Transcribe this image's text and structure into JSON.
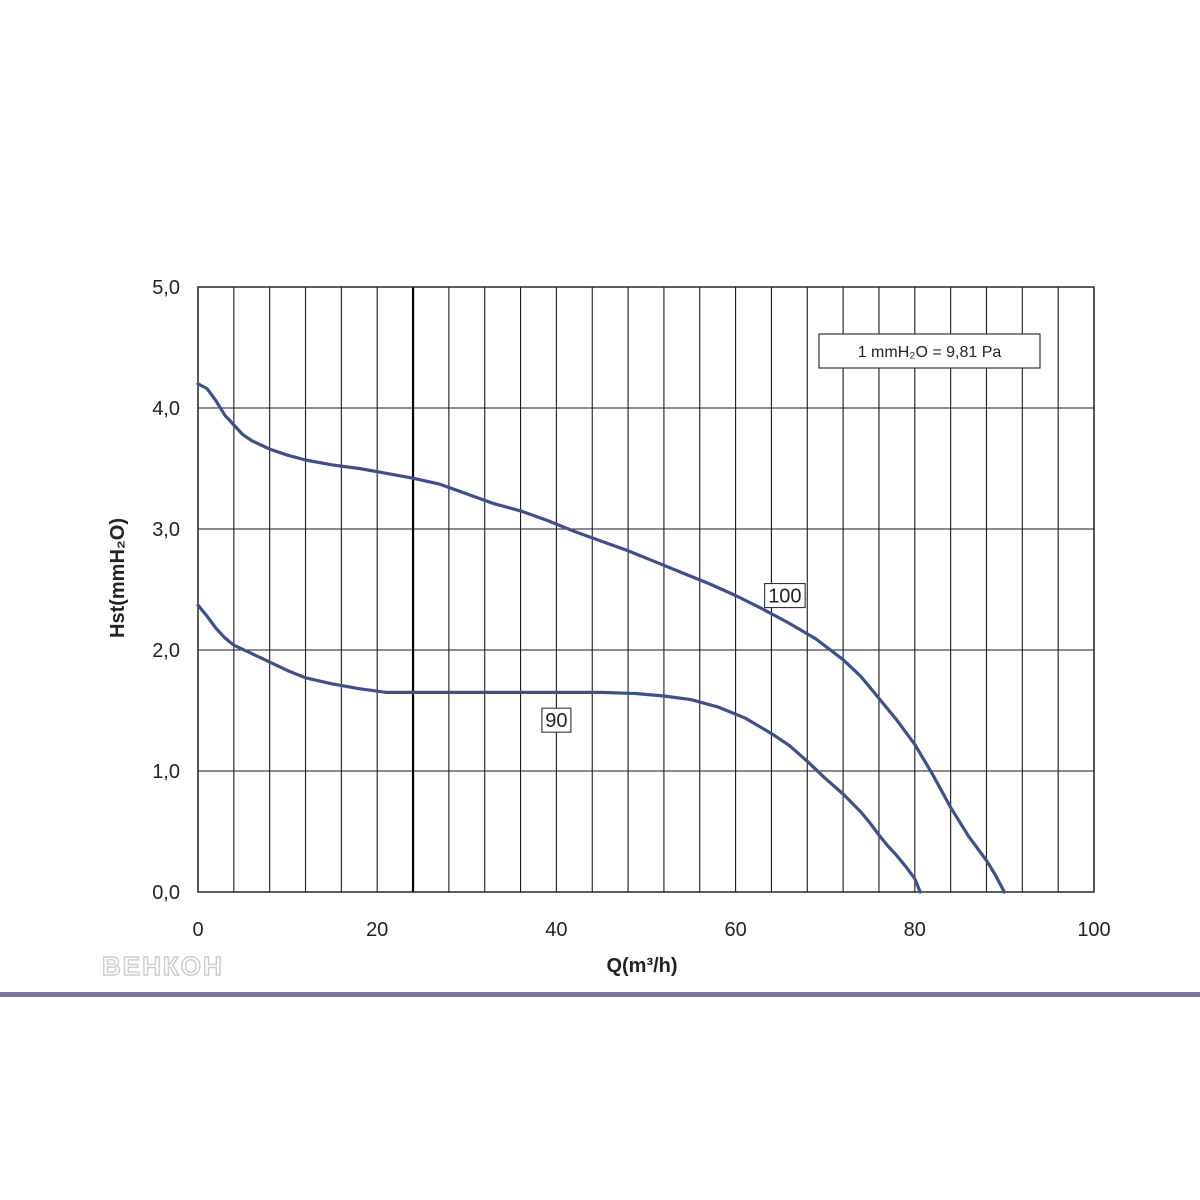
{
  "chart_data": {
    "type": "line",
    "title": "",
    "xlabel": "Q(m³/h)",
    "ylabel": "Hst(mmH₂O)",
    "xlim": [
      0,
      100
    ],
    "ylim": [
      0,
      5
    ],
    "x_ticks": [
      "0",
      "20",
      "40",
      "60",
      "80",
      "100"
    ],
    "y_ticks": [
      "0,0",
      "1,0",
      "2,0",
      "3,0",
      "4,0",
      "5,0"
    ],
    "grid": true,
    "grid_x_step": 4,
    "grid_y_step": 1,
    "emphasized_vertical_line_x": 24,
    "annotation": "1 mmH₂O = 9,81 Pa",
    "series": [
      {
        "name": "100",
        "label_at": [
          65.5,
          2.45
        ],
        "points": [
          [
            0,
            4.2
          ],
          [
            1,
            4.16
          ],
          [
            2,
            4.06
          ],
          [
            3,
            3.94
          ],
          [
            4,
            3.86
          ],
          [
            5,
            3.78
          ],
          [
            6,
            3.73
          ],
          [
            8,
            3.66
          ],
          [
            10,
            3.61
          ],
          [
            12,
            3.57
          ],
          [
            15,
            3.53
          ],
          [
            18,
            3.5
          ],
          [
            21,
            3.46
          ],
          [
            24,
            3.42
          ],
          [
            27,
            3.37
          ],
          [
            30,
            3.29
          ],
          [
            33,
            3.21
          ],
          [
            36,
            3.15
          ],
          [
            39,
            3.07
          ],
          [
            42,
            2.98
          ],
          [
            45,
            2.9
          ],
          [
            48,
            2.82
          ],
          [
            51,
            2.73
          ],
          [
            54,
            2.64
          ],
          [
            57,
            2.55
          ],
          [
            60,
            2.45
          ],
          [
            63,
            2.34
          ],
          [
            66,
            2.22
          ],
          [
            69,
            2.09
          ],
          [
            72,
            1.92
          ],
          [
            74,
            1.78
          ],
          [
            76,
            1.6
          ],
          [
            78,
            1.42
          ],
          [
            80,
            1.22
          ],
          [
            82,
            0.97
          ],
          [
            84,
            0.7
          ],
          [
            86,
            0.46
          ],
          [
            88,
            0.26
          ],
          [
            89,
            0.14
          ],
          [
            90,
            0.0
          ]
        ]
      },
      {
        "name": "90",
        "label_at": [
          40,
          1.42
        ],
        "points": [
          [
            0,
            2.37
          ],
          [
            1,
            2.28
          ],
          [
            2,
            2.18
          ],
          [
            3,
            2.1
          ],
          [
            4,
            2.04
          ],
          [
            6,
            1.97
          ],
          [
            8,
            1.9
          ],
          [
            10,
            1.83
          ],
          [
            12,
            1.77
          ],
          [
            15,
            1.72
          ],
          [
            18,
            1.68
          ],
          [
            21,
            1.65
          ],
          [
            25,
            1.65
          ],
          [
            30,
            1.65
          ],
          [
            35,
            1.65
          ],
          [
            40,
            1.65
          ],
          [
            45,
            1.65
          ],
          [
            49,
            1.64
          ],
          [
            52,
            1.62
          ],
          [
            55,
            1.59
          ],
          [
            58,
            1.53
          ],
          [
            61,
            1.44
          ],
          [
            64,
            1.31
          ],
          [
            66,
            1.21
          ],
          [
            68,
            1.08
          ],
          [
            70,
            0.94
          ],
          [
            72,
            0.81
          ],
          [
            74,
            0.66
          ],
          [
            75,
            0.57
          ],
          [
            76,
            0.47
          ],
          [
            77,
            0.38
          ],
          [
            78,
            0.3
          ],
          [
            79,
            0.21
          ],
          [
            80,
            0.11
          ],
          [
            80.6,
            0.0
          ]
        ]
      }
    ],
    "colors": {
      "curve": "#3e4f8f",
      "grid": "#1a1a1a",
      "frame": "#1a1a1a",
      "rule": "#7a749e"
    }
  },
  "logo": {
    "text": "ВЕНКОН"
  }
}
